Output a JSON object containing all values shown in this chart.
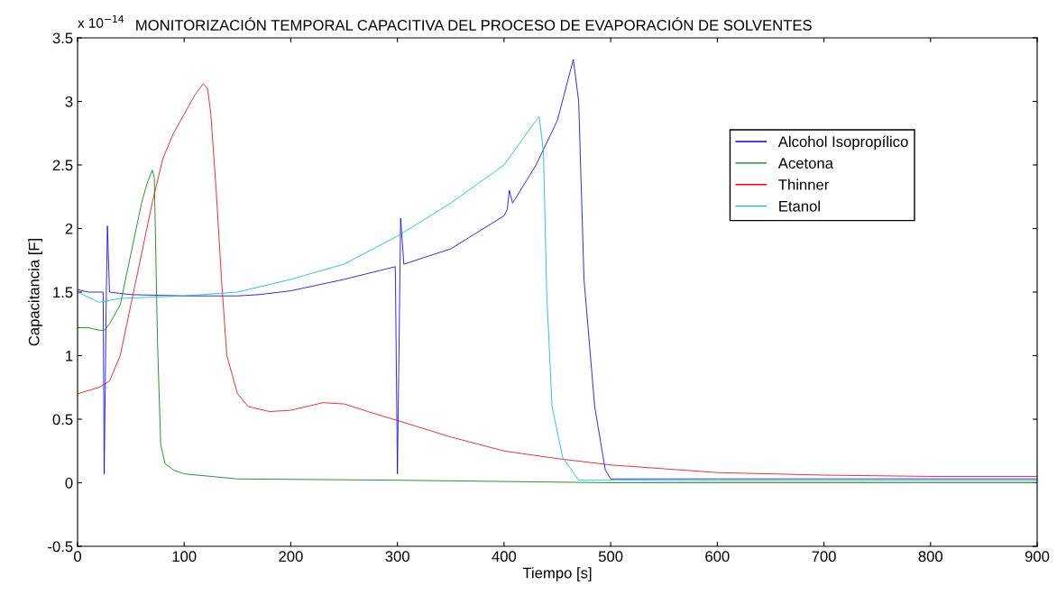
{
  "chart_data": {
    "type": "line",
    "title": "MONITORIZACIÓN TEMPORAL CAPACITIVA DEL PROCESO DE EVAPORACIÓN DE SOLVENTES",
    "xlabel": "Tiempo [s]",
    "ylabel": "Capacitancia [F]",
    "annotations": [
      "x 10$^{−14}$"
    ],
    "xlim": [
      0,
      900
    ],
    "xticks": [
      0,
      100,
      200,
      300,
      400,
      500,
      600,
      700,
      800,
      900
    ],
    "ylim": [
      -0.5,
      3.5
    ],
    "yticks": [
      -0.5,
      0,
      0.5,
      1,
      1.5,
      2,
      2.5,
      3,
      3.5
    ],
    "grid": false,
    "legend": "right",
    "line_style": "solid",
    "marker": "none",
    "series": [
      {
        "name": "Alcohol Isopropílico",
        "color": "#0000ff",
        "x": [
          0,
          10,
          20,
          24,
          25,
          27,
          28,
          30,
          50,
          100,
          150,
          170,
          200,
          250,
          298,
          300,
          303,
          306,
          350,
          400,
          403,
          405,
          408,
          430,
          450,
          465,
          470,
          475,
          485,
          495,
          500,
          600,
          700,
          800,
          900
        ],
        "values": [
          1.52,
          1.5,
          1.5,
          1.5,
          0.07,
          1.5,
          2.02,
          1.5,
          1.48,
          1.47,
          1.47,
          1.48,
          1.51,
          1.6,
          1.7,
          0.07,
          2.08,
          1.72,
          1.84,
          2.1,
          2.15,
          2.3,
          2.2,
          2.5,
          2.85,
          3.33,
          3.0,
          1.6,
          0.6,
          0.1,
          0.03,
          0.03,
          0.03,
          0.03,
          0.03
        ]
      },
      {
        "name": "Acetona",
        "color": "#008000",
        "x": [
          0,
          10,
          20,
          25,
          30,
          40,
          50,
          60,
          65,
          70,
          72,
          75,
          78,
          82,
          90,
          100,
          150,
          300,
          500,
          900
        ],
        "values": [
          1.22,
          1.22,
          1.2,
          1.2,
          1.25,
          1.4,
          1.8,
          2.2,
          2.35,
          2.46,
          2.4,
          1.1,
          0.3,
          0.15,
          0.1,
          0.07,
          0.03,
          0.02,
          0.0,
          0.0
        ]
      },
      {
        "name": "Thinner",
        "color": "#ff0000",
        "x": [
          0,
          20,
          30,
          40,
          50,
          60,
          70,
          80,
          90,
          100,
          110,
          118,
          122,
          125,
          130,
          135,
          140,
          150,
          160,
          180,
          200,
          230,
          250,
          280,
          300,
          350,
          400,
          450,
          500,
          550,
          600,
          700,
          800,
          900
        ],
        "values": [
          0.7,
          0.75,
          0.8,
          1.0,
          1.4,
          1.8,
          2.2,
          2.55,
          2.75,
          2.9,
          3.05,
          3.14,
          3.1,
          2.9,
          2.3,
          1.6,
          1.0,
          0.7,
          0.6,
          0.56,
          0.57,
          0.63,
          0.62,
          0.54,
          0.49,
          0.36,
          0.25,
          0.19,
          0.14,
          0.11,
          0.08,
          0.06,
          0.05,
          0.05
        ]
      },
      {
        "name": "Etanol",
        "color": "#00bfbf",
        "x": [
          0,
          20,
          40,
          100,
          150,
          200,
          250,
          300,
          350,
          400,
          430,
          433,
          437,
          440,
          445,
          455,
          470,
          600,
          900
        ],
        "values": [
          1.5,
          1.42,
          1.45,
          1.47,
          1.5,
          1.6,
          1.72,
          1.94,
          2.2,
          2.5,
          2.85,
          2.88,
          2.6,
          1.5,
          0.6,
          0.2,
          0.02,
          0.015,
          0.015
        ]
      }
    ]
  }
}
